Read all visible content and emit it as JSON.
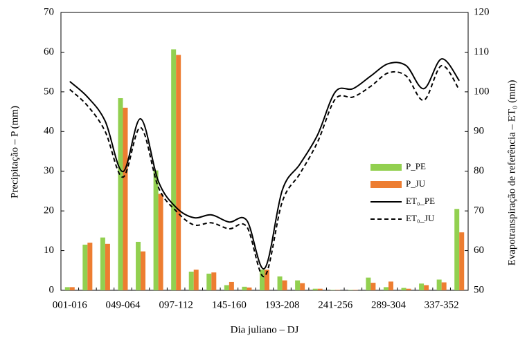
{
  "chart_data": {
    "type": "bar-line",
    "x_label": "Dia juliano – DJ",
    "y_label": "Precipitação – P (mm)",
    "y2_label": "Evapotranspiração de referência – ET₀ (mm)",
    "categories": [
      "001-016",
      null,
      null,
      "049-064",
      null,
      null,
      "097-112",
      null,
      null,
      "145-160",
      null,
      null,
      "193-208",
      null,
      null,
      "241-256",
      null,
      null,
      "289-304",
      null,
      null,
      "337-352",
      null
    ],
    "ylim": [
      0,
      70
    ],
    "yticks": [
      0,
      10,
      20,
      30,
      40,
      50,
      60,
      70
    ],
    "y2lim": [
      50,
      120
    ],
    "y2ticks": [
      50,
      60,
      70,
      80,
      90,
      100,
      110,
      120
    ],
    "series": [
      {
        "name": "P_PE",
        "type": "bar",
        "color": "#92d050",
        "values": [
          0.8,
          11.5,
          13.3,
          48.4,
          12.2,
          30.2,
          60.7,
          4.7,
          4.2,
          1.3,
          0.9,
          5.2,
          3.5,
          2.5,
          0.4,
          0.1,
          0.1,
          3.2,
          0.8,
          0.6,
          1.7,
          2.7,
          20.5
        ]
      },
      {
        "name": "P_JU",
        "type": "bar",
        "color": "#ed7d31",
        "values": [
          0.8,
          12.0,
          11.7,
          46.0,
          9.8,
          24.3,
          59.3,
          5.2,
          4.5,
          2.1,
          0.7,
          5.2,
          2.5,
          1.8,
          0.4,
          0.1,
          0.1,
          1.9,
          2.2,
          0.4,
          1.3,
          2.0,
          14.6
        ]
      },
      {
        "name": "ET₀_PE",
        "type": "line",
        "axis": "y2",
        "color": "#000000",
        "style": "solid",
        "values": [
          102.6,
          98.7,
          92.6,
          79.9,
          93.2,
          77.5,
          70.9,
          68.3,
          69.0,
          67.2,
          67.6,
          55.5,
          75.2,
          81.8,
          89.2,
          100.0,
          100.8,
          104.0,
          107.1,
          106.6,
          100.8,
          108.3,
          102.8
        ]
      },
      {
        "name": "ET₀_JU",
        "type": "line",
        "axis": "y2",
        "color": "#000000",
        "style": "dashed",
        "values": [
          100.6,
          96.5,
          90.0,
          78.5,
          91.0,
          76.0,
          70.0,
          66.5,
          67.0,
          65.5,
          66.0,
          53.5,
          72.3,
          79.4,
          87.4,
          98.2,
          98.7,
          101.4,
          104.8,
          104.0,
          97.9,
          106.6,
          100.5
        ]
      }
    ]
  }
}
